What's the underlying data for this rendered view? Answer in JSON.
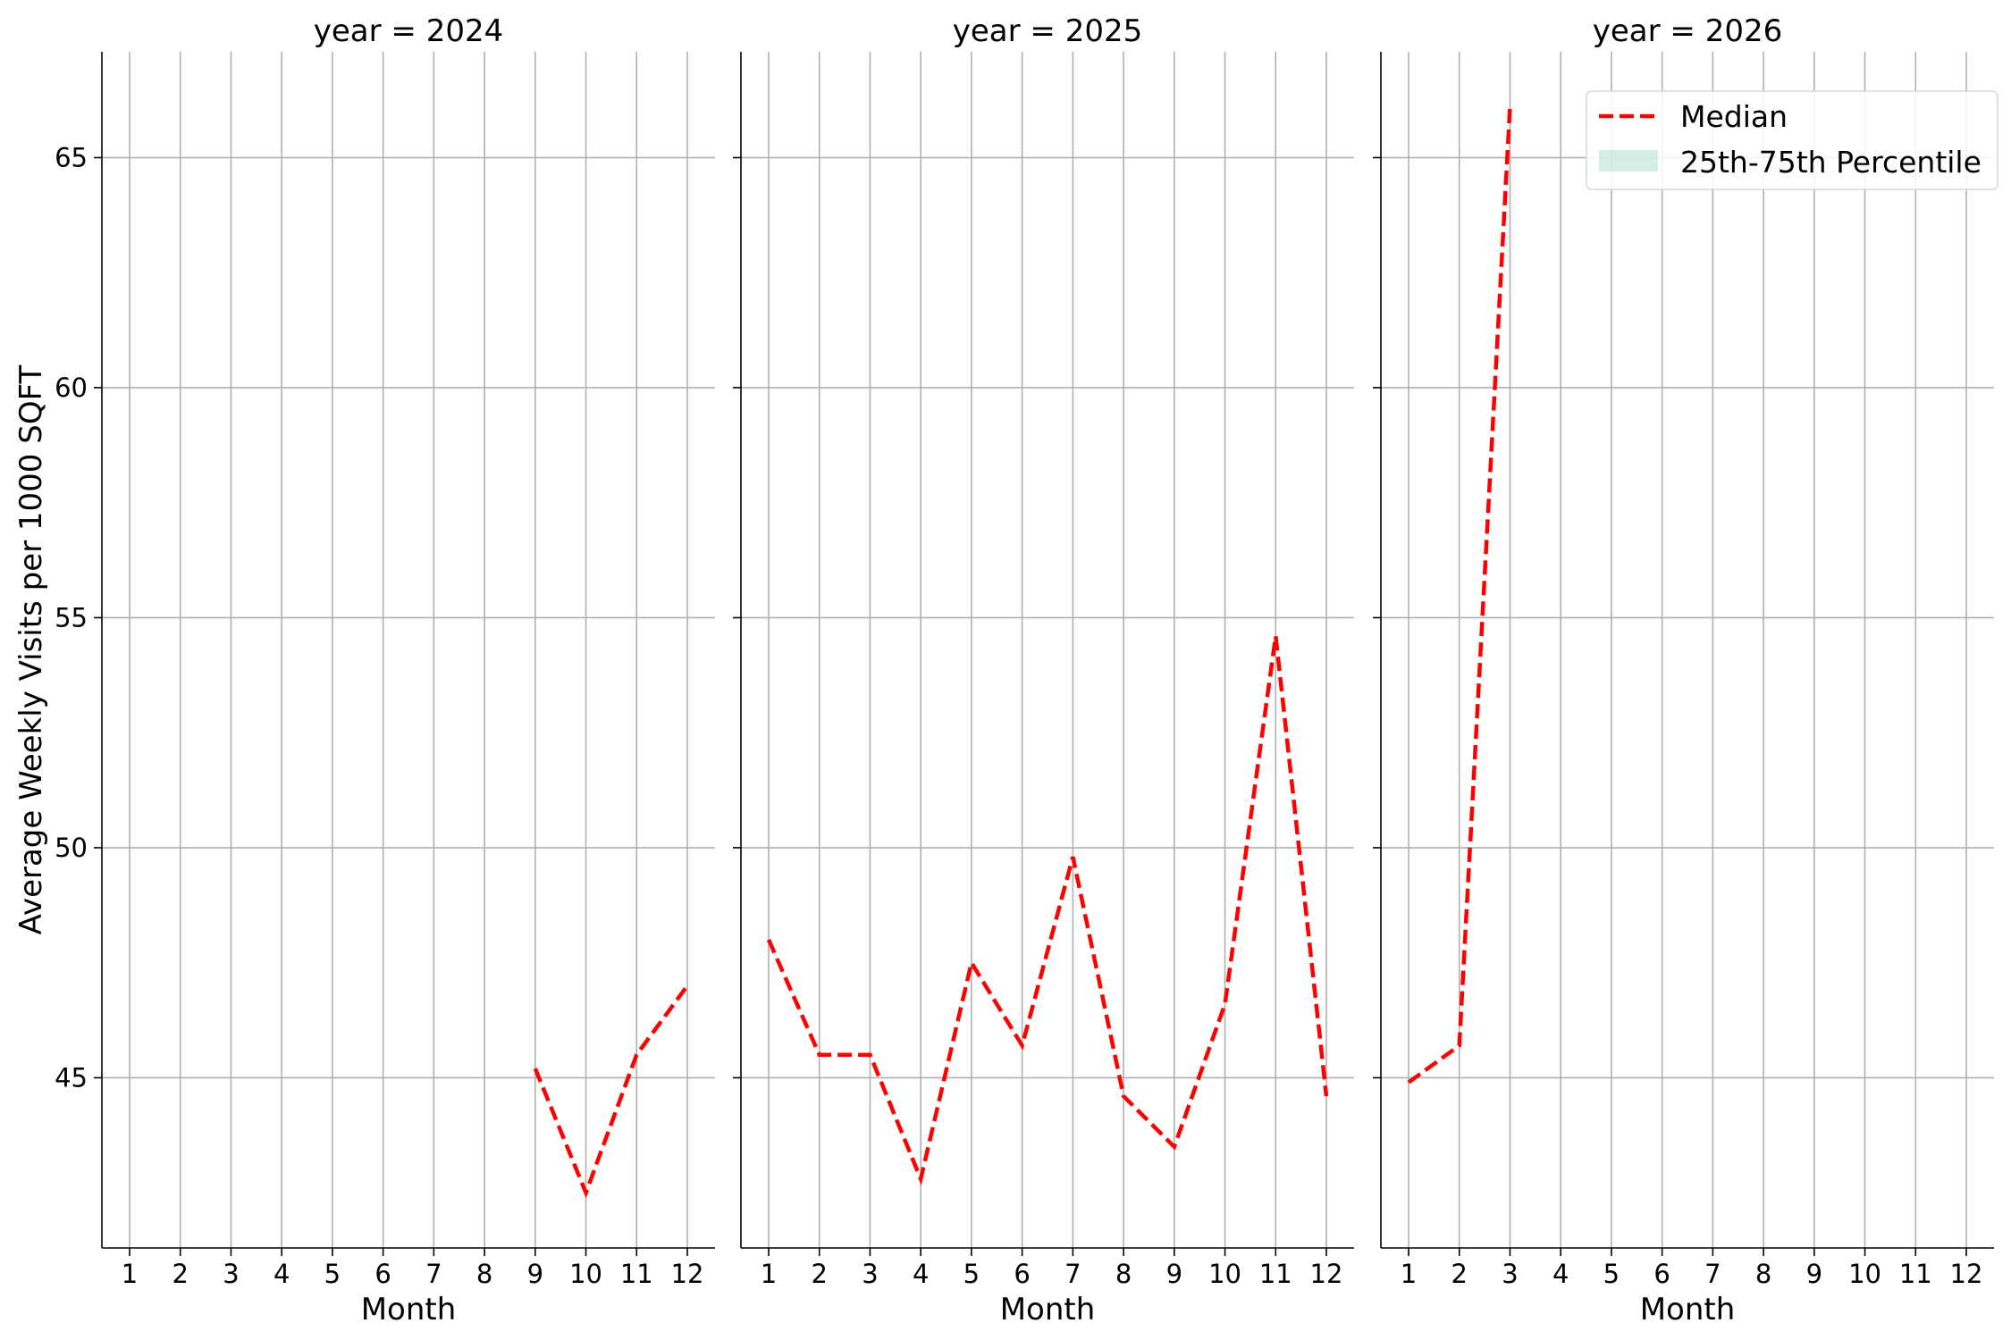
{
  "chart_data": {
    "type": "line",
    "ylabel": "Average Weekly Visits per 1000 SQFT",
    "xlabel": "Month",
    "ylim": [
      41.3,
      67.3
    ],
    "yticks": [
      45,
      50,
      55,
      60,
      65
    ],
    "xticks": [
      1,
      2,
      3,
      4,
      5,
      6,
      7,
      8,
      9,
      10,
      11,
      12
    ],
    "grid": true,
    "legend": {
      "placement": "top-right",
      "entries": [
        "Median",
        "25th-75th Percentile"
      ]
    },
    "colors": {
      "median": "#ff0000",
      "band": "#b9e3d6"
    },
    "panels": [
      {
        "title": "year = 2024",
        "series": [
          {
            "name": "Median",
            "x": [
              9,
              10,
              11,
              12
            ],
            "y": [
              45.2,
              42.5,
              45.5,
              47.0
            ]
          }
        ]
      },
      {
        "title": "year = 2025",
        "series": [
          {
            "name": "Median",
            "x": [
              1,
              2,
              3,
              4,
              5,
              6,
              7,
              8,
              9,
              10,
              11,
              12
            ],
            "y": [
              48.0,
              45.5,
              45.5,
              42.8,
              47.5,
              45.7,
              49.8,
              44.6,
              43.5,
              46.6,
              54.6,
              44.6
            ]
          }
        ]
      },
      {
        "title": "year = 2026",
        "series": [
          {
            "name": "Median",
            "x": [
              1,
              2,
              3
            ],
            "y": [
              44.9,
              45.7,
              66.1
            ]
          }
        ]
      }
    ]
  }
}
